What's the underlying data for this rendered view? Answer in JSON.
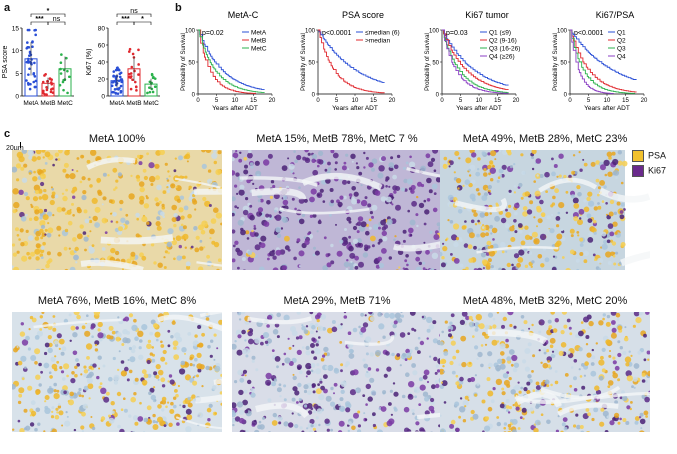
{
  "panels": {
    "a": "a",
    "b": "b",
    "c": "c"
  },
  "colors": {
    "metA": "#2a4fd6",
    "metB": "#e0282e",
    "metC": "#2bb24c",
    "q1": "#2a4fd6",
    "q2": "#e0282e",
    "q3": "#2bb24c",
    "q4": "#8b3fc4",
    "psa": "#f2c12e",
    "ki67": "#6a2a8c"
  },
  "chart_data": [
    {
      "type": "scatter",
      "title": "",
      "ylabel": "PSA score",
      "categories": [
        "MetA",
        "MetB",
        "MetC"
      ],
      "yticks": [
        "0",
        "5",
        "10",
        "15"
      ],
      "ylim": [
        0,
        15
      ],
      "means": [
        8.2,
        2.8,
        6.0
      ],
      "sig": [
        {
          "pair": "A-B",
          "label": "***"
        },
        {
          "pair": "B-C",
          "label": "ns"
        },
        {
          "pair": "A-C",
          "label": "*"
        }
      ]
    },
    {
      "type": "scatter",
      "title": "",
      "ylabel": "Ki67 (%)",
      "categories": [
        "MetA",
        "MetB",
        "MetC"
      ],
      "yticks": [
        "0",
        "20",
        "40",
        "60",
        "80"
      ],
      "ylim": [
        0,
        80
      ],
      "means": [
        18,
        32,
        14
      ],
      "sig": [
        {
          "pair": "A-B",
          "label": "***"
        },
        {
          "pair": "B-C",
          "label": "*"
        },
        {
          "pair": "A-C",
          "label": "ns"
        }
      ]
    },
    {
      "type": "line",
      "title": "MetA-C",
      "ylabel": "Probability of Survival",
      "xlabel": "Years  after ADT",
      "xticks": [
        "0",
        "5",
        "10",
        "15",
        "20"
      ],
      "yticks": [
        "0",
        "50",
        "100"
      ],
      "pvalue": "p=0.02",
      "legend": [
        "MetA",
        "MetB",
        "MetC"
      ]
    },
    {
      "type": "line",
      "title": "PSA score",
      "ylabel": "Probability of Survival",
      "xlabel": "Years  after ADT",
      "xticks": [
        "0",
        "5",
        "10",
        "15",
        "20"
      ],
      "yticks": [
        "0",
        "50",
        "100"
      ],
      "pvalue": "p<0.0001",
      "legend": [
        "≤median (6)",
        ">median"
      ]
    },
    {
      "type": "line",
      "title": "Ki67 tumor",
      "ylabel": "Probability of Survival",
      "xlabel": "Years after ADT",
      "xticks": [
        "0",
        "5",
        "10",
        "15",
        "20"
      ],
      "yticks": [
        "0",
        "50",
        "100"
      ],
      "pvalue": "p=0.03",
      "legend": [
        "Q1 (≤9)",
        "Q2 (9-16)",
        "Q3 (16-26)",
        "Q4 (≥26)"
      ]
    },
    {
      "type": "line",
      "title": "Ki67/PSA",
      "ylabel": "Probability of Survival",
      "xlabel": "Years after ADT",
      "xticks": [
        "0",
        "5",
        "10",
        "15",
        "20"
      ],
      "yticks": [
        "0",
        "50",
        "100"
      ],
      "pvalue": "p<0.0001",
      "legend": [
        "Q1",
        "Q2",
        "Q3",
        "Q4"
      ]
    }
  ],
  "histology": {
    "scale_bar": "20µm",
    "legend": [
      "PSA",
      "Ki67"
    ],
    "tiles": [
      "MetA 100%",
      "MetA 15%, MetB 78%, MetC 7 %",
      "MetA 49%, MetB 28%, MetC 23%",
      "MetA 76%, MetB 16%, MetC 8%",
      "MetA 29%, MetB 71%",
      "MetA 48%, MetB 32%, MetC 20%"
    ]
  }
}
